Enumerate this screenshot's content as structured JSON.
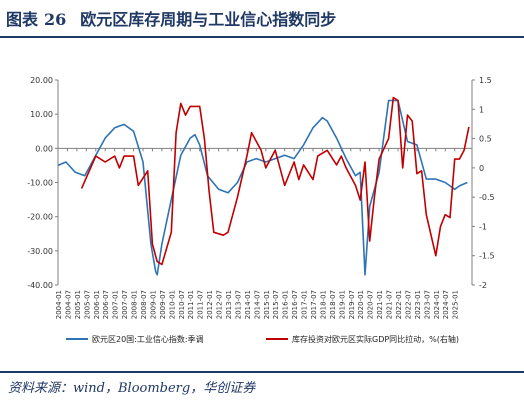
{
  "header": {
    "figure_label": "图表",
    "figure_number": "26",
    "title": "欧元区库存周期与工业信心指数同步"
  },
  "footer": {
    "source": "资料来源：wind，Bloomberg，华创证券"
  },
  "colors": {
    "title": "#1f3864",
    "left_series": "#2e74b5",
    "right_series": "#c00000",
    "axis": "#808080"
  },
  "chart_data": {
    "type": "line",
    "title": "",
    "xlabel": "",
    "ylabel": "",
    "grid": false,
    "legend_position": "bottom",
    "x_ticks": [
      "2004-01",
      "2004-07",
      "2005-01",
      "2005-07",
      "2006-01",
      "2006-07",
      "2007-01",
      "2007-07",
      "2008-01",
      "2008-07",
      "2009-01",
      "2009-07",
      "2010-01",
      "2010-07",
      "2011-01",
      "2011-07",
      "2012-01",
      "2012-07",
      "2013-01",
      "2013-07",
      "2014-01",
      "2014-07",
      "2015-01",
      "2015-07",
      "2016-01",
      "2016-07",
      "2017-01",
      "2017-07",
      "2018-01",
      "2018-07",
      "2019-01",
      "2019-07",
      "2020-01",
      "2020-07",
      "2021-01",
      "2021-07",
      "2022-01",
      "2022-07",
      "2023-01",
      "2023-07",
      "2024-01",
      "2024-07",
      "2025-01"
    ],
    "y_left_ticks": [
      "20.00",
      "10.00",
      "0.00",
      "-10.00",
      "-20.00",
      "-30.00",
      "-40.00"
    ],
    "y_right_ticks": [
      "1.5",
      "1",
      "0.5",
      "0",
      "-0.5",
      "-1",
      "-1.5",
      "-2"
    ],
    "ylim_left": [
      -40,
      20
    ],
    "ylim_right": [
      -2,
      1.5
    ],
    "series": [
      {
        "name": "欧元区20国:工业信心指数:季调",
        "axis": "left",
        "points": [
          [
            "2004-01",
            -5
          ],
          [
            "2004-06",
            -4
          ],
          [
            "2004-12",
            -7
          ],
          [
            "2005-06",
            -8
          ],
          [
            "2006-01",
            -2
          ],
          [
            "2006-07",
            3
          ],
          [
            "2007-01",
            6
          ],
          [
            "2007-07",
            7
          ],
          [
            "2008-01",
            5
          ],
          [
            "2008-07",
            -4
          ],
          [
            "2008-12",
            -28
          ],
          [
            "2009-03",
            -36
          ],
          [
            "2009-04",
            -37
          ],
          [
            "2009-07",
            -28
          ],
          [
            "2010-01",
            -15
          ],
          [
            "2010-07",
            -2
          ],
          [
            "2011-01",
            3
          ],
          [
            "2011-04",
            4
          ],
          [
            "2011-07",
            1
          ],
          [
            "2011-12",
            -8
          ],
          [
            "2012-07",
            -12
          ],
          [
            "2013-01",
            -13
          ],
          [
            "2013-07",
            -10
          ],
          [
            "2014-01",
            -4
          ],
          [
            "2014-07",
            -3
          ],
          [
            "2015-01",
            -4
          ],
          [
            "2015-07",
            -3
          ],
          [
            "2016-01",
            -2
          ],
          [
            "2016-07",
            -3
          ],
          [
            "2017-01",
            1
          ],
          [
            "2017-07",
            6
          ],
          [
            "2018-01",
            9
          ],
          [
            "2018-04",
            8
          ],
          [
            "2018-10",
            3
          ],
          [
            "2019-04",
            -3
          ],
          [
            "2019-10",
            -8
          ],
          [
            "2020-01",
            -7
          ],
          [
            "2020-04",
            -37
          ],
          [
            "2020-07",
            -17
          ],
          [
            "2021-01",
            -7
          ],
          [
            "2021-07",
            14
          ],
          [
            "2022-01",
            14
          ],
          [
            "2022-07",
            2
          ],
          [
            "2023-01",
            1
          ],
          [
            "2023-07",
            -9
          ],
          [
            "2024-01",
            -9
          ],
          [
            "2024-07",
            -10
          ],
          [
            "2024-10",
            -11
          ],
          [
            "2025-01",
            -12
          ],
          [
            "2025-04",
            -11
          ],
          [
            "2025-09",
            -10
          ]
        ]
      },
      {
        "name": "库存投资对欧元区实际GDP同比拉动，%(右轴)",
        "axis": "right",
        "points": [
          [
            "2005-04",
            -0.35
          ],
          [
            "2006-01",
            0.2
          ],
          [
            "2006-07",
            0.1
          ],
          [
            "2007-01",
            0.2
          ],
          [
            "2007-04",
            0.0
          ],
          [
            "2007-07",
            0.2
          ],
          [
            "2008-01",
            0.2
          ],
          [
            "2008-04",
            -0.3
          ],
          [
            "2008-10",
            -0.05
          ],
          [
            "2009-01",
            -1.3
          ],
          [
            "2009-04",
            -1.6
          ],
          [
            "2009-07",
            -1.65
          ],
          [
            "2010-01",
            -1.1
          ],
          [
            "2010-04",
            0.6
          ],
          [
            "2010-07",
            1.1
          ],
          [
            "2010-10",
            0.9
          ],
          [
            "2011-01",
            1.05
          ],
          [
            "2011-07",
            1.05
          ],
          [
            "2011-10",
            0.5
          ],
          [
            "2012-01",
            -0.4
          ],
          [
            "2012-04",
            -1.1
          ],
          [
            "2012-10",
            -1.15
          ],
          [
            "2013-01",
            -1.1
          ],
          [
            "2013-07",
            -0.5
          ],
          [
            "2014-01",
            0.2
          ],
          [
            "2014-04",
            0.6
          ],
          [
            "2014-10",
            0.3
          ],
          [
            "2015-01",
            0.0
          ],
          [
            "2015-07",
            0.3
          ],
          [
            "2016-01",
            -0.3
          ],
          [
            "2016-07",
            0.1
          ],
          [
            "2016-10",
            -0.2
          ],
          [
            "2017-01",
            0.05
          ],
          [
            "2017-07",
            -0.2
          ],
          [
            "2017-10",
            0.2
          ],
          [
            "2018-04",
            0.3
          ],
          [
            "2018-10",
            0.05
          ],
          [
            "2019-01",
            0.2
          ],
          [
            "2019-04",
            0.0
          ],
          [
            "2019-10",
            -0.3
          ],
          [
            "2020-01",
            -0.55
          ],
          [
            "2020-04",
            0.1
          ],
          [
            "2020-07",
            -1.25
          ],
          [
            "2020-10",
            -0.5
          ],
          [
            "2021-01",
            0.15
          ],
          [
            "2021-07",
            0.5
          ],
          [
            "2021-10",
            1.2
          ],
          [
            "2022-01",
            1.15
          ],
          [
            "2022-04",
            0.0
          ],
          [
            "2022-07",
            0.9
          ],
          [
            "2022-10",
            0.8
          ],
          [
            "2023-01",
            -0.1
          ],
          [
            "2023-04",
            -0.05
          ],
          [
            "2023-07",
            -0.8
          ],
          [
            "2024-01",
            -1.5
          ],
          [
            "2024-04",
            -1.0
          ],
          [
            "2024-07",
            -0.8
          ],
          [
            "2024-10",
            -0.85
          ],
          [
            "2025-01",
            0.15
          ],
          [
            "2025-04",
            0.15
          ],
          [
            "2025-07",
            0.3
          ],
          [
            "2025-10",
            0.7
          ]
        ]
      }
    ]
  }
}
